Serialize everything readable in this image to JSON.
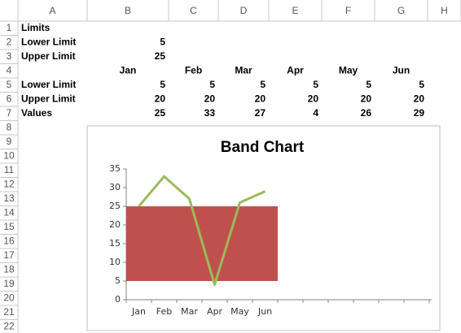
{
  "spreadsheet": {
    "columns": [
      "A",
      "B",
      "C",
      "D",
      "E",
      "F",
      "G",
      "H"
    ],
    "row_numbers": [
      1,
      2,
      3,
      4,
      5,
      6,
      7,
      8,
      9,
      10,
      11,
      12,
      13,
      14,
      15,
      16,
      17,
      18,
      19,
      20,
      21,
      22
    ],
    "rows": [
      [
        "Limits"
      ],
      [
        "Lower Limit",
        5
      ],
      [
        "Upper Limit",
        25
      ],
      [
        null,
        "Jan",
        "Feb",
        "Mar",
        "Apr",
        "May",
        "Jun"
      ],
      [
        "Lower Limit",
        5,
        5,
        5,
        5,
        5,
        5
      ],
      [
        "Upper Limit",
        20,
        20,
        20,
        20,
        20,
        20
      ],
      [
        "Values",
        25,
        33,
        27,
        4,
        26,
        29
      ]
    ]
  },
  "chart_data": {
    "type": "combo",
    "title": "Band Chart",
    "categories": [
      "Jan",
      "Feb",
      "Mar",
      "Apr",
      "May",
      "Jun"
    ],
    "series": [
      {
        "name": "Lower Limit",
        "type": "bar",
        "color": "none",
        "values": [
          5,
          5,
          5,
          5,
          5,
          5
        ]
      },
      {
        "name": "Upper Limit",
        "type": "bar",
        "color": "#c0504d",
        "values": [
          20,
          20,
          20,
          20,
          20,
          20
        ]
      },
      {
        "name": "Values",
        "type": "line",
        "color": "#9bbb59",
        "values": [
          25,
          33,
          27,
          4,
          26,
          29
        ]
      }
    ],
    "stacked": true,
    "ylim": [
      0,
      35
    ],
    "yticks": [
      0,
      5,
      10,
      15,
      20,
      25,
      30,
      35
    ],
    "grid": false,
    "legend": false
  }
}
